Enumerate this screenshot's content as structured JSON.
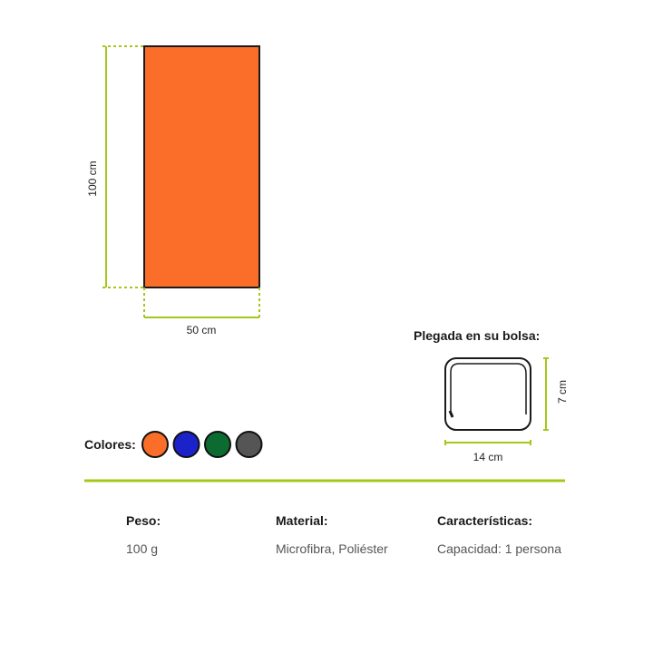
{
  "towel": {
    "color": "#fb6e29",
    "height_label": "100 cm",
    "width_label": "50 cm"
  },
  "folded": {
    "title": "Plegada en su bolsa:",
    "height_label": "7 cm",
    "width_label": "14 cm"
  },
  "colors": {
    "label": "Colores:",
    "swatches": [
      "#fb6e29",
      "#1b22c9",
      "#0b6b30",
      "#555555"
    ]
  },
  "accent_color": "#a4c81a",
  "specs": [
    {
      "label": "Peso:",
      "value": "100 g"
    },
    {
      "label": "Material:",
      "value": "Microfibra, Poliéster"
    },
    {
      "label": "Características:",
      "value": "Capacidad: 1 persona"
    }
  ]
}
